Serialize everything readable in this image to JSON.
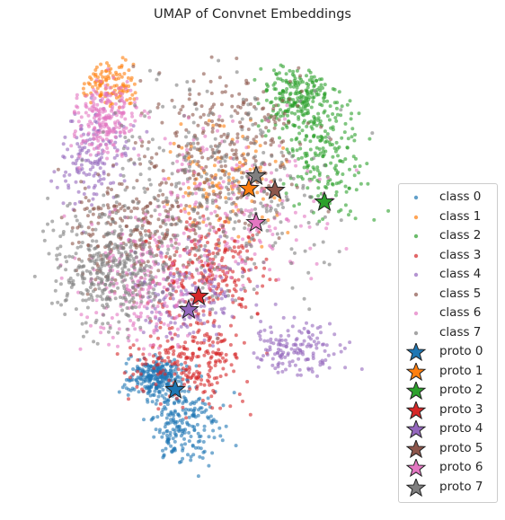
{
  "chart_data": {
    "type": "scatter",
    "title": "UMAP of Convnet Embeddings",
    "xlabel": "",
    "ylabel": "",
    "axes_visible": false,
    "grid": false,
    "legend_position": "right",
    "series": [
      {
        "name": "class 0",
        "color": "#1f77b4",
        "marker": "dot"
      },
      {
        "name": "class 1",
        "color": "#ff7f0e",
        "marker": "dot"
      },
      {
        "name": "class 2",
        "color": "#2ca02c",
        "marker": "dot"
      },
      {
        "name": "class 3",
        "color": "#d62728",
        "marker": "dot"
      },
      {
        "name": "class 4",
        "color": "#9467bd",
        "marker": "dot"
      },
      {
        "name": "class 5",
        "color": "#8c564b",
        "marker": "dot"
      },
      {
        "name": "class 6",
        "color": "#e377c2",
        "marker": "dot"
      },
      {
        "name": "class 7",
        "color": "#7f7f7f",
        "marker": "dot"
      }
    ],
    "prototypes": [
      {
        "name": "proto 0",
        "color": "#1f77b4",
        "marker": "star"
      },
      {
        "name": "proto 1",
        "color": "#ff7f0e",
        "marker": "star"
      },
      {
        "name": "proto 2",
        "color": "#2ca02c",
        "marker": "star"
      },
      {
        "name": "proto 3",
        "color": "#d62728",
        "marker": "star"
      },
      {
        "name": "proto 4",
        "color": "#9467bd",
        "marker": "star"
      },
      {
        "name": "proto 5",
        "color": "#8c564b",
        "marker": "star"
      },
      {
        "name": "proto 6",
        "color": "#e377c2",
        "marker": "star"
      },
      {
        "name": "proto 7",
        "color": "#7f7f7f",
        "marker": "star"
      }
    ]
  }
}
